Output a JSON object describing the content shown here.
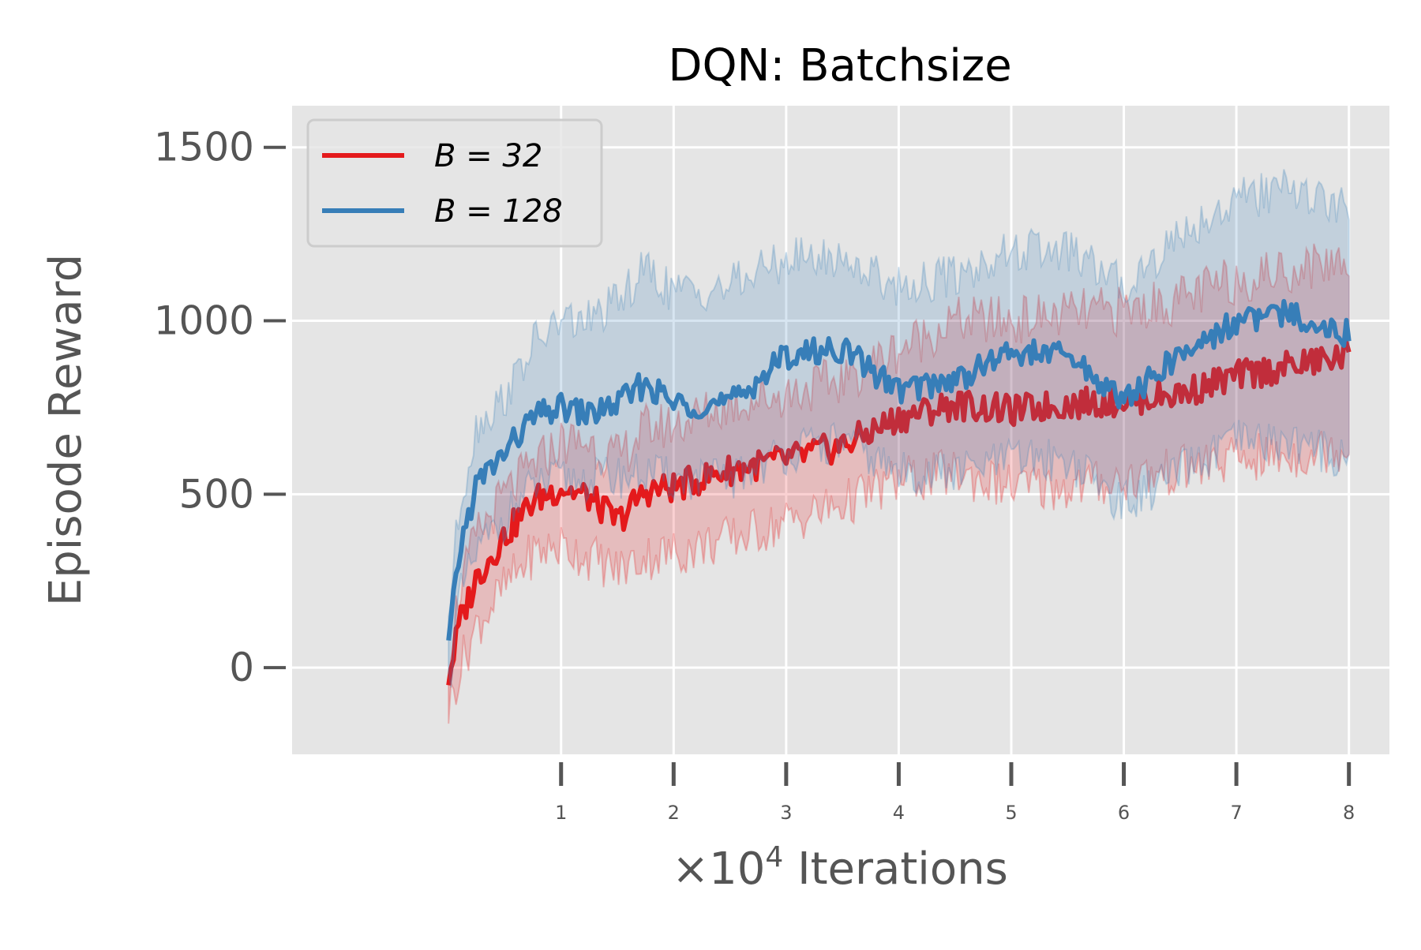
{
  "chart_data": {
    "type": "line",
    "title": "DQN: Batchsize",
    "xlabel_prefix": "×10",
    "xlabel_exponent": "4",
    "xlabel_suffix": " Iterations",
    "ylabel": "Episode Reward",
    "xlim": [
      -1.39,
      8.36
    ],
    "ylim": [
      -250,
      1620
    ],
    "xticks": [
      1,
      2,
      3,
      4,
      5,
      6,
      7,
      8
    ],
    "xtick_labels": [
      "1",
      "2",
      "3",
      "4",
      "5",
      "6",
      "7",
      "8"
    ],
    "yticks": [
      0,
      500,
      1000,
      1500
    ],
    "ytick_labels": [
      "0",
      "500",
      "1000",
      "1500"
    ],
    "grid": true,
    "legend_position": "upper left",
    "series": [
      {
        "name": "B = 32",
        "legend_label": "B = 32",
        "color": "#e41a1c",
        "x": [
          0.0,
          0.1,
          0.25,
          0.5,
          0.75,
          1.0,
          1.25,
          1.5,
          1.75,
          2.0,
          2.5,
          3.0,
          3.5,
          4.0,
          4.5,
          5.0,
          5.5,
          6.0,
          6.5,
          7.0,
          7.5,
          8.0
        ],
        "mean": [
          -30,
          130,
          260,
          380,
          480,
          520,
          490,
          420,
          510,
          520,
          570,
          600,
          640,
          720,
          760,
          740,
          760,
          770,
          790,
          840,
          870,
          900
        ],
        "low": [
          -120,
          0,
          120,
          230,
          330,
          350,
          320,
          280,
          320,
          330,
          370,
          420,
          470,
          540,
          560,
          520,
          520,
          540,
          570,
          600,
          610,
          640
        ],
        "high": [
          30,
          230,
          380,
          500,
          580,
          650,
          650,
          600,
          690,
          700,
          760,
          790,
          830,
          920,
          1000,
          1000,
          1020,
          1030,
          1060,
          1120,
          1150,
          1180
        ]
      },
      {
        "name": "B = 128",
        "legend_label": "B = 128",
        "color": "#377eb8",
        "x": [
          0.0,
          0.1,
          0.25,
          0.5,
          0.75,
          1.0,
          1.25,
          1.5,
          1.75,
          2.0,
          2.5,
          3.0,
          3.5,
          4.0,
          4.5,
          5.0,
          5.5,
          6.0,
          6.5,
          7.0,
          7.5,
          8.0
        ],
        "mean": [
          60,
          340,
          530,
          620,
          720,
          750,
          730,
          760,
          820,
          760,
          760,
          900,
          920,
          800,
          830,
          910,
          900,
          770,
          900,
          1000,
          1020,
          960
        ],
        "low": [
          -50,
          200,
          330,
          430,
          520,
          540,
          540,
          550,
          560,
          540,
          540,
          620,
          650,
          560,
          560,
          600,
          600,
          470,
          560,
          650,
          650,
          600
        ],
        "high": [
          150,
          470,
          700,
          780,
          930,
          1000,
          1000,
          1050,
          1150,
          1080,
          1100,
          1180,
          1180,
          1100,
          1130,
          1200,
          1200,
          1100,
          1250,
          1350,
          1380,
          1320
        ]
      }
    ]
  }
}
